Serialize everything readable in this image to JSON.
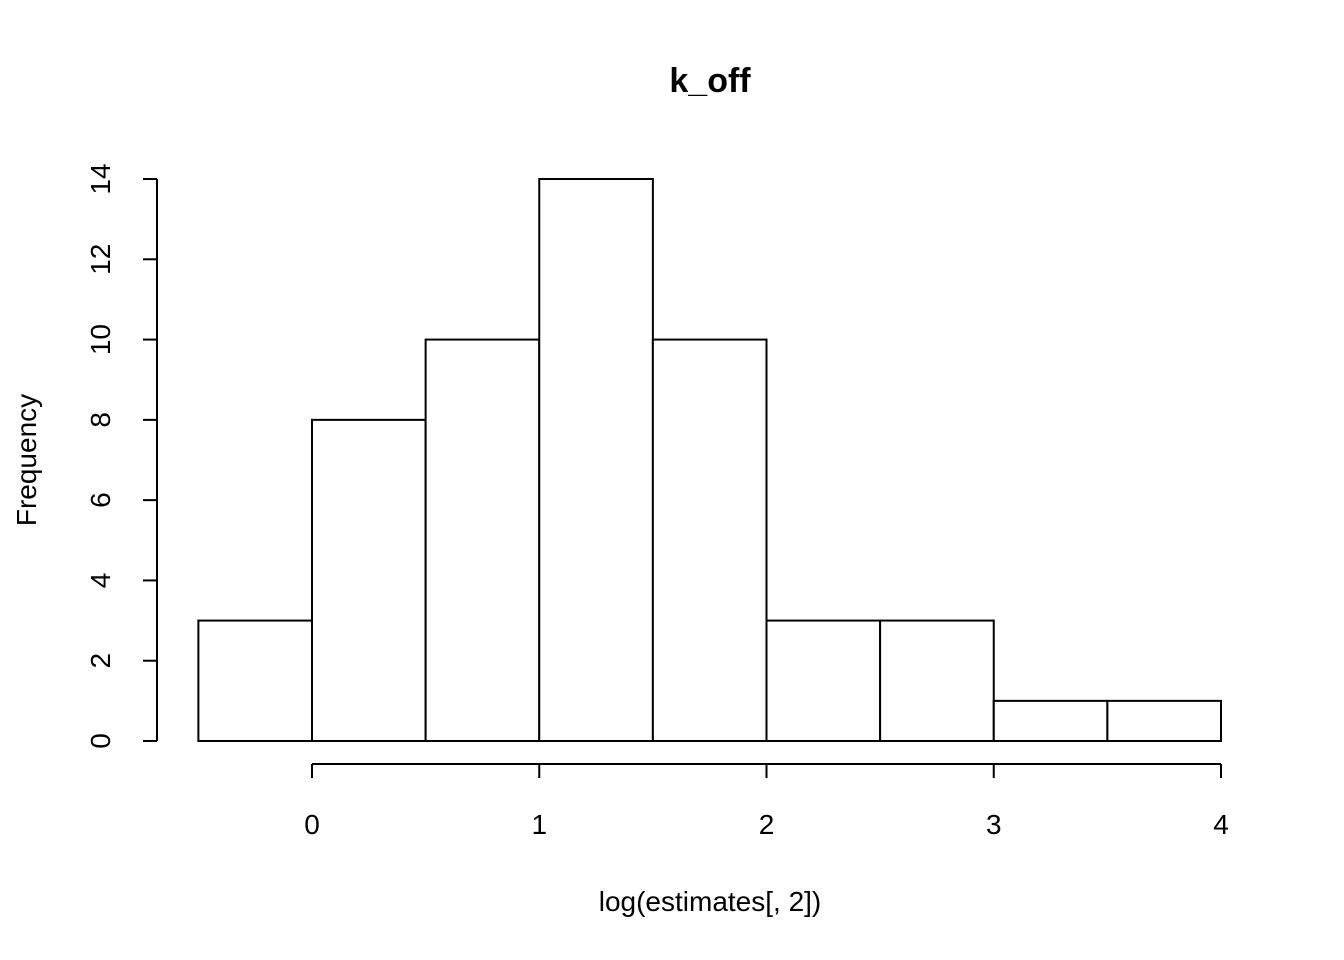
{
  "chart_data": {
    "type": "bar",
    "title": "k_off",
    "xlabel": "log(estimates[, 2])",
    "ylabel": "Frequency",
    "bins": [
      {
        "x0": -0.5,
        "x1": 0.0,
        "count": 3
      },
      {
        "x0": 0.0,
        "x1": 0.5,
        "count": 8
      },
      {
        "x0": 0.5,
        "x1": 1.0,
        "count": 10
      },
      {
        "x0": 1.0,
        "x1": 1.5,
        "count": 14
      },
      {
        "x0": 1.5,
        "x1": 2.0,
        "count": 10
      },
      {
        "x0": 2.0,
        "x1": 2.5,
        "count": 3
      },
      {
        "x0": 2.5,
        "x1": 3.0,
        "count": 3
      },
      {
        "x0": 3.0,
        "x1": 3.5,
        "count": 1
      },
      {
        "x0": 3.5,
        "x1": 4.0,
        "count": 1
      }
    ],
    "xticks": [
      0,
      1,
      2,
      3,
      4
    ],
    "yticks": [
      0,
      2,
      4,
      6,
      8,
      10,
      12,
      14
    ],
    "xlim": [
      -0.5,
      4.0
    ],
    "ylim": [
      0,
      14
    ],
    "grid": false,
    "colors": {
      "bar_fill": "#ffffff",
      "bar_stroke": "#000000"
    }
  }
}
